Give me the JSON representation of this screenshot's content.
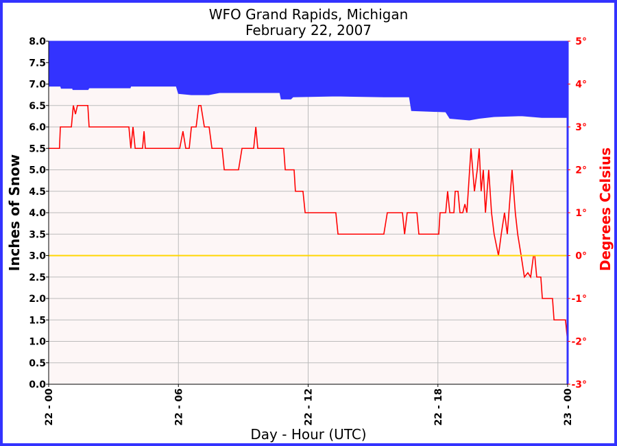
{
  "chart_data": {
    "type": "line",
    "title": "WFO Grand Rapids, Michigan",
    "subtitle": "February 22, 2007",
    "x_label": "Day - Hour (UTC)",
    "y_label": "Inches of Snow",
    "y2_label": "Degrees Celsius",
    "xlim": [
      0,
      24
    ],
    "xticks": [
      {
        "value": 0,
        "label": "22 - 00"
      },
      {
        "value": 6,
        "label": "22 - 06"
      },
      {
        "value": 12,
        "label": "22 - 12"
      },
      {
        "value": 18,
        "label": "22 - 18"
      },
      {
        "value": 24,
        "label": "23 - 00"
      }
    ],
    "ylim": [
      0,
      8
    ],
    "yticks": [
      {
        "value": 0,
        "label": "0.0"
      },
      {
        "value": 0.5,
        "label": "0.5"
      },
      {
        "value": 1,
        "label": "1.0"
      },
      {
        "value": 1.5,
        "label": "1.5"
      },
      {
        "value": 2,
        "label": "2.0"
      },
      {
        "value": 2.5,
        "label": "2.5"
      },
      {
        "value": 3,
        "label": "3.0"
      },
      {
        "value": 3.5,
        "label": "3.5"
      },
      {
        "value": 4,
        "label": "4.0"
      },
      {
        "value": 4.5,
        "label": "4.5"
      },
      {
        "value": 5,
        "label": "5.0"
      },
      {
        "value": 5.5,
        "label": "5.5"
      },
      {
        "value": 6,
        "label": "6.0"
      },
      {
        "value": 6.5,
        "label": "6.5"
      },
      {
        "value": 7,
        "label": "7.0"
      },
      {
        "value": 7.5,
        "label": "7.5"
      },
      {
        "value": 8,
        "label": "8.0"
      }
    ],
    "y2lim": [
      -3,
      5
    ],
    "y2ticks": [
      {
        "value": -3,
        "label": "-3°"
      },
      {
        "value": -2,
        "label": "-2°"
      },
      {
        "value": -1,
        "label": "-1°"
      },
      {
        "value": 0,
        "label": "0°"
      },
      {
        "value": 1,
        "label": "1°"
      },
      {
        "value": 2,
        "label": "2°"
      },
      {
        "value": 3,
        "label": "3°"
      },
      {
        "value": 4,
        "label": "4°"
      },
      {
        "value": 5,
        "label": "5°"
      }
    ],
    "y2_color": "#ff0000",
    "grid": true,
    "reference_line": {
      "axis": "y2",
      "value": 0,
      "color": "#ffd700"
    },
    "series": [
      {
        "style": "area-above",
        "color": "#3333ff",
        "axis": "y",
        "x": [
          0,
          0.55,
          0.58,
          1.1,
          1.12,
          1.82,
          1.87,
          3.77,
          3.8,
          5.9,
          6.0,
          6.6,
          7.4,
          7.9,
          10.69,
          10.75,
          11.2,
          11.3,
          13.3,
          15.5,
          16.68,
          16.78,
          18.36,
          18.55,
          19.45,
          19.9,
          20.6,
          21.85,
          22.8,
          24
        ],
        "values": [
          6.95,
          6.95,
          6.9,
          6.9,
          6.87,
          6.87,
          6.91,
          6.91,
          6.95,
          6.95,
          6.78,
          6.75,
          6.75,
          6.8,
          6.8,
          6.65,
          6.65,
          6.7,
          6.72,
          6.7,
          6.7,
          6.38,
          6.35,
          6.2,
          6.16,
          6.2,
          6.24,
          6.26,
          6.22,
          6.22
        ]
      },
      {
        "style": "line",
        "color": "#ff0000",
        "axis": "y2",
        "x": [
          0,
          0.5,
          0.54,
          1.05,
          1.14,
          1.24,
          1.33,
          1.81,
          1.87,
          3.71,
          3.8,
          3.9,
          4.0,
          4.34,
          4.41,
          4.47,
          6.06,
          6.21,
          6.34,
          6.5,
          6.6,
          6.82,
          6.94,
          7.04,
          7.2,
          7.42,
          7.55,
          8.02,
          8.12,
          8.78,
          8.94,
          9.48,
          9.58,
          9.67,
          10.87,
          10.94,
          11.35,
          11.41,
          11.76,
          11.86,
          13.28,
          13.38,
          15.5,
          15.66,
          16.36,
          16.46,
          16.58,
          17.03,
          17.12,
          18.04,
          18.1,
          18.36,
          18.45,
          18.55,
          18.74,
          18.8,
          18.93,
          19.02,
          19.15,
          19.25,
          19.34,
          19.53,
          19.69,
          19.82,
          19.91,
          20.0,
          20.1,
          20.2,
          20.35,
          20.48,
          20.6,
          20.8,
          20.93,
          21.08,
          21.21,
          21.43,
          21.58,
          21.69,
          21.85,
          22.0,
          22.16,
          22.29,
          22.42,
          22.48,
          22.57,
          22.76,
          22.83,
          23.3,
          23.37,
          23.9,
          24.0
        ],
        "values": [
          2.5,
          2.5,
          3.0,
          3.0,
          3.5,
          3.3,
          3.5,
          3.5,
          3.0,
          3.0,
          2.5,
          3.0,
          2.5,
          2.5,
          2.9,
          2.5,
          2.5,
          2.9,
          2.5,
          2.5,
          3.0,
          3.0,
          3.5,
          3.5,
          3.0,
          3.0,
          2.5,
          2.5,
          2.0,
          2.0,
          2.5,
          2.5,
          3.0,
          2.5,
          2.5,
          2.0,
          2.0,
          1.5,
          1.5,
          1.0,
          1.0,
          0.5,
          0.5,
          1.0,
          1.0,
          0.5,
          1.0,
          1.0,
          0.5,
          0.5,
          1.0,
          1.0,
          1.5,
          1.0,
          1.0,
          1.5,
          1.5,
          1.0,
          1.0,
          1.2,
          1.0,
          2.5,
          1.5,
          2.0,
          2.5,
          1.5,
          2.0,
          1.0,
          2.0,
          1.0,
          0.5,
          0.0,
          0.5,
          1.0,
          0.5,
          2.0,
          1.0,
          0.5,
          0.0,
          -0.5,
          -0.4,
          -0.5,
          0.0,
          0.0,
          -0.5,
          -0.5,
          -1.0,
          -1.0,
          -1.5,
          -1.5,
          -2.0
        ]
      }
    ]
  }
}
